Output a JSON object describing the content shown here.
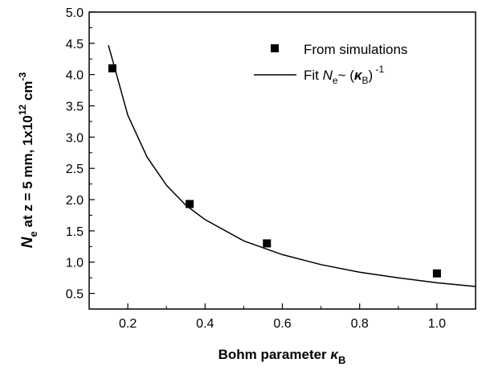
{
  "chart_data": {
    "type": "scatter",
    "xlim": [
      0.1,
      1.1
    ],
    "ylim": [
      0.25,
      5.0
    ],
    "x_ticks": [
      "0.2",
      "0.4",
      "0.6",
      "0.8",
      "1.0"
    ],
    "y_ticks": [
      "0.5",
      "1.0",
      "1.5",
      "2.0",
      "2.5",
      "3.0",
      "3.5",
      "4.0",
      "4.5",
      "5.0"
    ],
    "xlabel": {
      "main": "Bohm parameter ",
      "kappa": "κ",
      "sub": "B"
    },
    "ylabel": {
      "n": "N",
      "sub": "e",
      "rest": " at z = 5 mm, 1x10",
      "sup": "12",
      "unit": " cm",
      "unit_sup": "-3"
    },
    "grid": false,
    "legend_position": "top-right",
    "series": [
      {
        "name": "From simulations",
        "marker": "square",
        "x": [
          0.16,
          0.36,
          0.56,
          1.0
        ],
        "y": [
          4.1,
          1.93,
          1.3,
          0.82
        ]
      },
      {
        "name": "Fit",
        "type": "line",
        "formula_label": {
          "fit": "Fit ",
          "n": "N",
          "sub": "e",
          "tilde": "~ (",
          "kappa": "κ",
          "ksub": "B",
          "close": ")",
          "sup": " -1"
        },
        "x": [
          0.15,
          0.2,
          0.25,
          0.3,
          0.35,
          0.4,
          0.5,
          0.6,
          0.7,
          0.8,
          0.9,
          1.0,
          1.1
        ],
        "y": [
          4.47,
          3.35,
          2.68,
          2.23,
          1.91,
          1.68,
          1.34,
          1.12,
          0.96,
          0.84,
          0.75,
          0.67,
          0.61
        ]
      }
    ]
  }
}
